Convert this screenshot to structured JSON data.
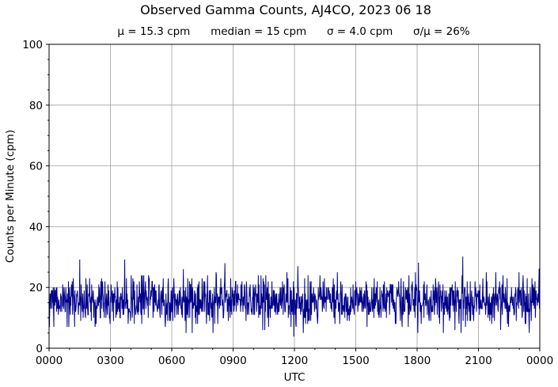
{
  "chart_data": {
    "type": "line",
    "title": "Observed Gamma Counts, AJ4CO, 2023 06 18",
    "subtitle": "μ = 15.3 cpm      median = 15 cpm      σ = 4.0 cpm      σ/μ = 26%",
    "xlabel": "UTC",
    "ylabel": "Counts per Minute (cpm)",
    "xlim": [
      0,
      1440
    ],
    "ylim": [
      0,
      100
    ],
    "x_ticks": [
      0,
      180,
      360,
      540,
      720,
      900,
      1080,
      1260,
      1440
    ],
    "x_tick_labels": [
      "0000",
      "0300",
      "0600",
      "0900",
      "1200",
      "1500",
      "1800",
      "2100",
      "0000"
    ],
    "y_ticks": [
      0,
      20,
      40,
      60,
      80,
      100
    ],
    "y_tick_labels": [
      "0",
      "20",
      "40",
      "60",
      "80",
      "100"
    ],
    "grid": true,
    "line_color": "#00008b",
    "series": [
      {
        "x_interval_minutes": 1,
        "stats": {
          "mean": 15.3,
          "median": 15,
          "std": 4.0,
          "min": 4,
          "max": 30
        },
        "notable_points": [
          {
            "x": 90,
            "y": 29
          },
          {
            "x": 222,
            "y": 29
          },
          {
            "x": 718,
            "y": 4
          },
          {
            "x": 1084,
            "y": 28
          },
          {
            "x": 1214,
            "y": 30
          },
          {
            "x": 1438,
            "y": 26
          }
        ]
      }
    ]
  }
}
